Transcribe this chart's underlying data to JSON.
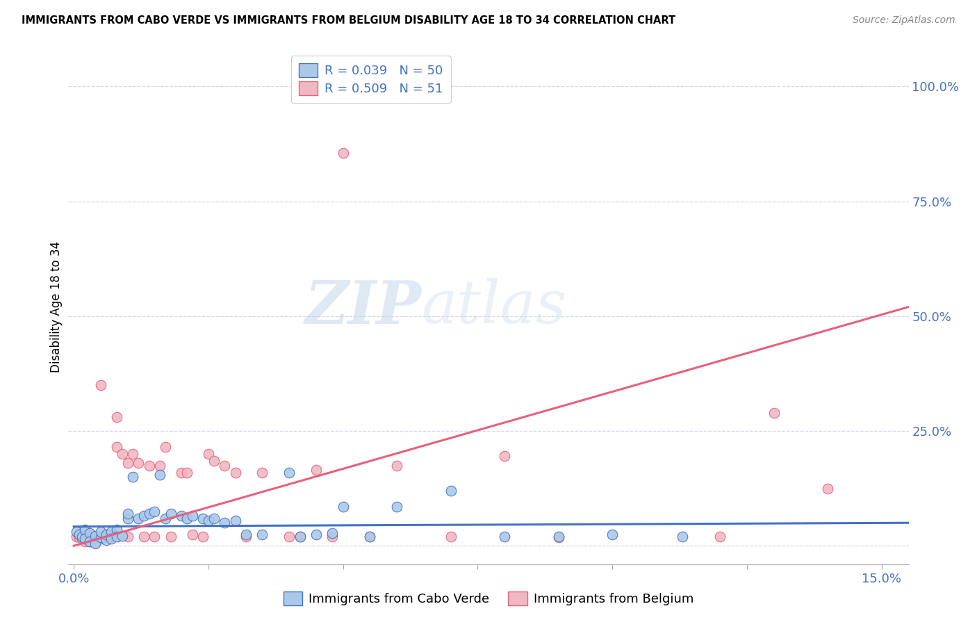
{
  "title": "IMMIGRANTS FROM CABO VERDE VS IMMIGRANTS FROM BELGIUM DISABILITY AGE 18 TO 34 CORRELATION CHART",
  "source": "Source: ZipAtlas.com",
  "ylabel": "Disability Age 18 to 34",
  "xlim": [
    -0.001,
    0.155
  ],
  "ylim": [
    -0.04,
    1.08
  ],
  "x_ticks": [
    0.0,
    0.025,
    0.05,
    0.075,
    0.1,
    0.125,
    0.15
  ],
  "x_tick_labels": [
    "0.0%",
    "",
    "",
    "",
    "",
    "",
    "15.0%"
  ],
  "right_y_ticks": [
    0.0,
    0.25,
    0.5,
    0.75,
    1.0
  ],
  "right_y_tick_labels": [
    "",
    "25.0%",
    "50.0%",
    "75.0%",
    "100.0%"
  ],
  "legend_R1": "R = 0.039",
  "legend_N1": "N = 50",
  "legend_R2": "R = 0.509",
  "legend_N2": "N = 51",
  "legend_label1": "Immigrants from Cabo Verde",
  "legend_label2": "Immigrants from Belgium",
  "color_blue": "#aac9e8",
  "color_pink": "#f0b8c4",
  "color_blue_dark": "#4472c4",
  "color_pink_dark": "#e8607a",
  "color_text_blue": "#4472c4",
  "watermark_zip": "ZIP",
  "watermark_atlas": "atlas",
  "grid_color": "#d0d8e8",
  "cabo_verde_x": [
    0.0005,
    0.001,
    0.0015,
    0.002,
    0.002,
    0.003,
    0.003,
    0.004,
    0.004,
    0.005,
    0.005,
    0.006,
    0.006,
    0.007,
    0.007,
    0.008,
    0.008,
    0.009,
    0.01,
    0.01,
    0.011,
    0.012,
    0.013,
    0.014,
    0.015,
    0.016,
    0.017,
    0.018,
    0.02,
    0.021,
    0.022,
    0.024,
    0.025,
    0.026,
    0.028,
    0.03,
    0.032,
    0.035,
    0.04,
    0.042,
    0.045,
    0.048,
    0.05,
    0.055,
    0.06,
    0.07,
    0.08,
    0.09,
    0.1,
    0.113
  ],
  "cabo_verde_y": [
    0.03,
    0.025,
    0.02,
    0.035,
    0.015,
    0.028,
    0.01,
    0.022,
    0.005,
    0.018,
    0.03,
    0.012,
    0.025,
    0.03,
    0.015,
    0.035,
    0.02,
    0.022,
    0.06,
    0.07,
    0.15,
    0.06,
    0.065,
    0.07,
    0.075,
    0.155,
    0.06,
    0.07,
    0.065,
    0.06,
    0.065,
    0.06,
    0.055,
    0.06,
    0.05,
    0.055,
    0.025,
    0.025,
    0.16,
    0.02,
    0.025,
    0.028,
    0.085,
    0.02,
    0.085,
    0.12,
    0.02,
    0.02,
    0.025,
    0.02
  ],
  "belgium_x": [
    0.0005,
    0.001,
    0.0015,
    0.002,
    0.002,
    0.003,
    0.003,
    0.004,
    0.004,
    0.005,
    0.005,
    0.006,
    0.006,
    0.007,
    0.007,
    0.008,
    0.008,
    0.009,
    0.01,
    0.01,
    0.011,
    0.012,
    0.013,
    0.014,
    0.015,
    0.016,
    0.017,
    0.018,
    0.02,
    0.021,
    0.022,
    0.024,
    0.025,
    0.026,
    0.028,
    0.03,
    0.032,
    0.035,
    0.04,
    0.042,
    0.045,
    0.048,
    0.05,
    0.055,
    0.06,
    0.07,
    0.08,
    0.09,
    0.12,
    0.13,
    0.14
  ],
  "belgium_y": [
    0.02,
    0.018,
    0.015,
    0.022,
    0.01,
    0.02,
    0.01,
    0.018,
    0.008,
    0.015,
    0.35,
    0.018,
    0.02,
    0.025,
    0.02,
    0.28,
    0.215,
    0.2,
    0.18,
    0.02,
    0.2,
    0.18,
    0.02,
    0.175,
    0.02,
    0.175,
    0.215,
    0.02,
    0.16,
    0.16,
    0.025,
    0.02,
    0.2,
    0.185,
    0.175,
    0.16,
    0.02,
    0.16,
    0.02,
    0.02,
    0.165,
    0.02,
    0.855,
    0.02,
    0.175,
    0.02,
    0.195,
    0.018,
    0.02,
    0.29,
    0.125
  ],
  "blue_trend_x": [
    0.0,
    0.155
  ],
  "blue_trend_y": [
    0.042,
    0.05
  ],
  "pink_trend_x": [
    0.0,
    0.155
  ],
  "pink_trend_y": [
    0.0,
    0.52
  ]
}
